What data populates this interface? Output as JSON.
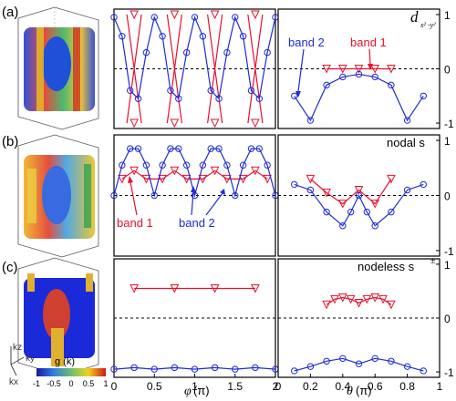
{
  "colors": {
    "band1": "#e8112d",
    "band2": "#1f2bd6",
    "frame": "#000000",
    "dash": "#000000"
  },
  "panel_labels": [
    "(a)",
    "(b)",
    "(c)"
  ],
  "row_titles": [
    "",
    "nodal s",
    "nodeless s"
  ],
  "row_title_math": {
    "a_main": "d",
    "a_sub": "x² -y²",
    "c_sup": "±"
  },
  "annotations": {
    "band1": "band 1",
    "band2": "band 2"
  },
  "x_left": {
    "label_main": "φ",
    "label_unit": "(π)",
    "ticks": [
      "0",
      "0.5",
      "1",
      "1.5",
      "2"
    ]
  },
  "x_right": {
    "label_main": "θ",
    "label_unit": "(π)",
    "ticks": [
      "0",
      "0.2",
      "0.4",
      "0.6",
      "0.8",
      "1"
    ]
  },
  "y_ticks": [
    "1",
    "0",
    "-1"
  ],
  "colorbar": {
    "label": "g (k)",
    "ticks": [
      "-1",
      "-0.5",
      "0",
      "0.5",
      "1"
    ]
  },
  "axes3d": {
    "kz": "kz",
    "ky": "ky",
    "kx": "kx"
  },
  "chart_data": [
    {
      "type": "scatter",
      "panel": "a-left",
      "ylim": [
        -1.1,
        1.1
      ],
      "xlim": [
        0,
        2
      ],
      "series": [
        {
          "name": "band 1",
          "x": [
            0.25,
            0.25,
            0.75,
            0.75,
            1.25,
            1.25,
            1.75,
            1.75
          ],
          "y": [
            1.0,
            -1.0,
            1.0,
            -1.0,
            1.0,
            -1.0,
            1.0,
            -1.0
          ]
        },
        {
          "name": "band 2",
          "x": [
            0,
            0.1,
            0.2,
            0.3,
            0.4,
            0.5,
            0.6,
            0.7,
            0.8,
            0.9,
            1.0,
            1.1,
            1.2,
            1.3,
            1.4,
            1.5,
            1.6,
            1.7,
            1.8,
            1.9,
            2.0
          ],
          "y": [
            0.95,
            0.6,
            -0.4,
            -0.55,
            0.3,
            0.95,
            0.6,
            -0.4,
            -0.55,
            0.3,
            0.95,
            0.6,
            -0.4,
            -0.55,
            0.3,
            0.95,
            0.6,
            -0.4,
            -0.55,
            0.3,
            0.95
          ]
        }
      ]
    },
    {
      "type": "scatter",
      "panel": "a-right",
      "ylim": [
        -1.1,
        1.1
      ],
      "xlim": [
        0,
        1
      ],
      "series": [
        {
          "name": "band 1",
          "x": [
            0.3,
            0.4,
            0.5,
            0.6,
            0.7
          ],
          "y": [
            0.0,
            0.0,
            0.0,
            0.0,
            0.0
          ]
        },
        {
          "name": "band 2",
          "x": [
            0.1,
            0.2,
            0.3,
            0.4,
            0.5,
            0.6,
            0.7,
            0.8,
            0.9
          ],
          "y": [
            -0.5,
            -0.95,
            -0.3,
            -0.15,
            -0.1,
            -0.15,
            -0.3,
            -0.95,
            -0.5
          ]
        }
      ]
    },
    {
      "type": "scatter",
      "panel": "b-left",
      "ylim": [
        -1.1,
        1.1
      ],
      "xlim": [
        0,
        2
      ],
      "series": [
        {
          "name": "band 1",
          "x": [
            0.1,
            0.25,
            0.4,
            0.6,
            0.75,
            0.9,
            1.1,
            1.25,
            1.4,
            1.6,
            1.75,
            1.9
          ],
          "y": [
            0.3,
            0.45,
            0.3,
            0.3,
            0.45,
            0.3,
            0.3,
            0.45,
            0.3,
            0.3,
            0.45,
            0.3
          ]
        },
        {
          "name": "band 2",
          "x": [
            0,
            0.1,
            0.2,
            0.3,
            0.4,
            0.5,
            0.6,
            0.7,
            0.8,
            0.9,
            1.0,
            1.1,
            1.2,
            1.3,
            1.4,
            1.5,
            1.6,
            1.7,
            1.8,
            1.9,
            2.0
          ],
          "y": [
            0.0,
            0.55,
            0.85,
            0.85,
            0.55,
            0.0,
            0.55,
            0.85,
            0.85,
            0.55,
            0.0,
            0.55,
            0.85,
            0.85,
            0.55,
            0.0,
            0.55,
            0.85,
            0.85,
            0.55,
            0.0
          ]
        }
      ]
    },
    {
      "type": "scatter",
      "panel": "b-right",
      "ylim": [
        -1.1,
        1.1
      ],
      "xlim": [
        0,
        1
      ],
      "series": [
        {
          "name": "band 1",
          "x": [
            0.2,
            0.3,
            0.4,
            0.5,
            0.6,
            0.7
          ],
          "y": [
            0.3,
            0.05,
            -0.15,
            0.1,
            -0.15,
            0.3
          ]
        },
        {
          "name": "band 2",
          "x": [
            0.1,
            0.2,
            0.3,
            0.4,
            0.45,
            0.5,
            0.55,
            0.6,
            0.7,
            0.8,
            0.9
          ],
          "y": [
            0.2,
            0.1,
            -0.3,
            -0.55,
            -0.3,
            0.0,
            -0.3,
            -0.55,
            -0.3,
            0.1,
            0.2
          ]
        }
      ]
    },
    {
      "type": "scatter",
      "panel": "c-left",
      "ylim": [
        -1.1,
        1.1
      ],
      "xlim": [
        0,
        2
      ],
      "series": [
        {
          "name": "band 1",
          "x": [
            0.25,
            0.75,
            1.25,
            1.75
          ],
          "y": [
            0.55,
            0.55,
            0.55,
            0.55
          ]
        },
        {
          "name": "band 2",
          "x": [
            0,
            0.25,
            0.5,
            0.75,
            1.0,
            1.25,
            1.5,
            1.75,
            2.0
          ],
          "y": [
            -0.95,
            -0.92,
            -0.95,
            -0.92,
            -0.95,
            -0.92,
            -0.95,
            -0.92,
            -0.95
          ]
        }
      ]
    },
    {
      "type": "scatter",
      "panel": "c-right",
      "ylim": [
        -1.1,
        1.1
      ],
      "xlim": [
        0,
        1
      ],
      "series": [
        {
          "name": "band 1",
          "x": [
            0.3,
            0.35,
            0.4,
            0.45,
            0.5,
            0.55,
            0.6,
            0.65,
            0.7
          ],
          "y": [
            0.25,
            0.35,
            0.38,
            0.35,
            0.28,
            0.35,
            0.38,
            0.35,
            0.25
          ]
        },
        {
          "name": "band 2",
          "x": [
            0.1,
            0.2,
            0.3,
            0.4,
            0.5,
            0.6,
            0.7,
            0.8,
            0.9
          ],
          "y": [
            -0.98,
            -0.9,
            -0.8,
            -0.75,
            -0.85,
            -0.75,
            -0.8,
            -0.9,
            -0.98
          ]
        }
      ]
    }
  ]
}
